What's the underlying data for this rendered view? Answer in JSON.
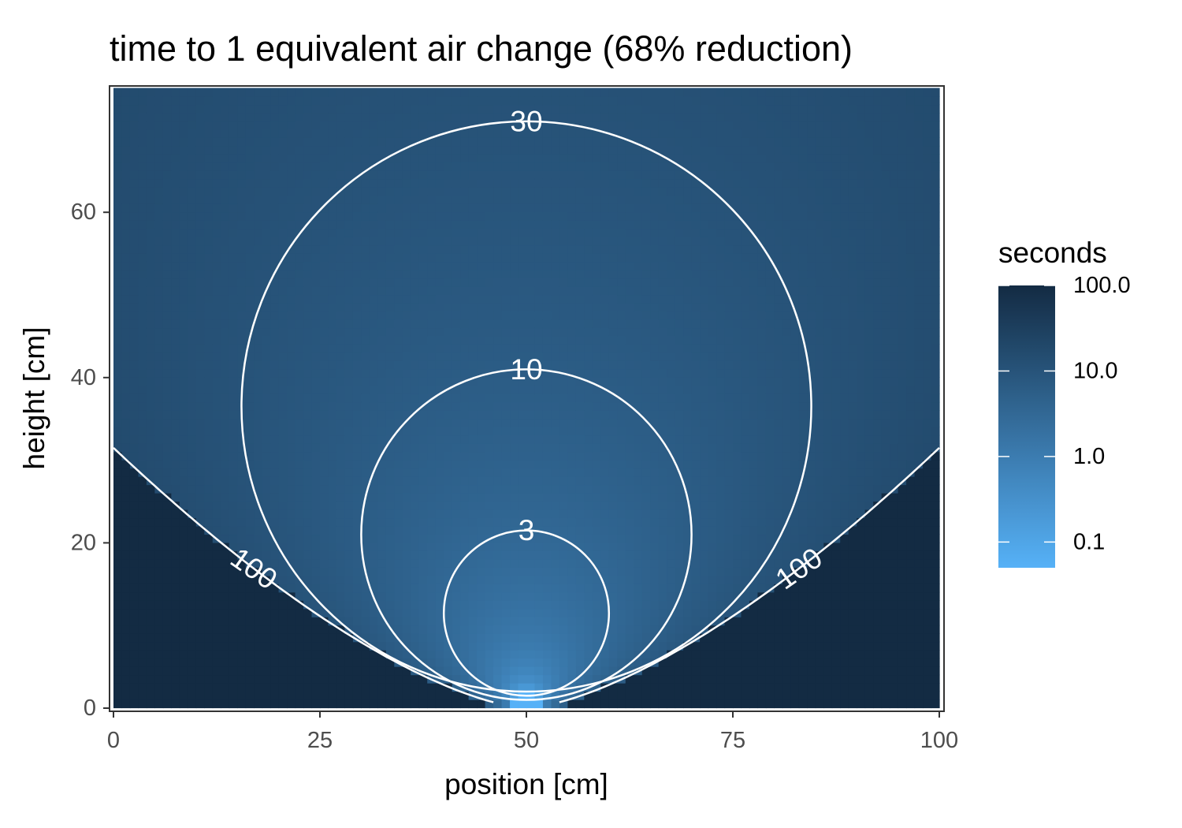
{
  "chart_data": {
    "type": "heatmap",
    "title": "time to 1 equivalent air change (68% reduction)",
    "xlabel": "position [cm]",
    "ylabel": "height [cm]",
    "xlim": [
      0,
      100
    ],
    "ylim": [
      0,
      75
    ],
    "x_ticks": [
      0,
      25,
      50,
      75,
      100
    ],
    "y_ticks": [
      0,
      20,
      40,
      60
    ],
    "x_tick_labels": [
      "0",
      "25",
      "50",
      "75",
      "100"
    ],
    "y_tick_labels": [
      "0",
      "20",
      "40",
      "60"
    ],
    "source_position": 50,
    "color_scale": {
      "type": "log10",
      "low_color": "#56B1F7",
      "high_color": "#132B43",
      "range": [
        0.05,
        100
      ],
      "title": "seconds",
      "breaks": [
        100,
        10,
        1,
        0.1
      ],
      "labels": [
        "100.0",
        "10.0",
        "1.0",
        "0.1"
      ]
    },
    "contours": [
      {
        "level": 3,
        "label": "3",
        "type": "circle",
        "center": [
          50,
          11.5
        ],
        "radius": 10
      },
      {
        "level": 10,
        "label": "10",
        "type": "circle",
        "center": [
          50,
          21
        ],
        "radius": 20
      },
      {
        "level": 30,
        "label": "30",
        "type": "circle",
        "center": [
          50,
          36.5
        ],
        "radius": 34.5
      },
      {
        "level": 100,
        "label": "100",
        "type": "boundary",
        "edge_height": 31.5,
        "labels_at_x": [
          17,
          83
        ]
      }
    ],
    "grid": false,
    "legend_position": "right"
  }
}
